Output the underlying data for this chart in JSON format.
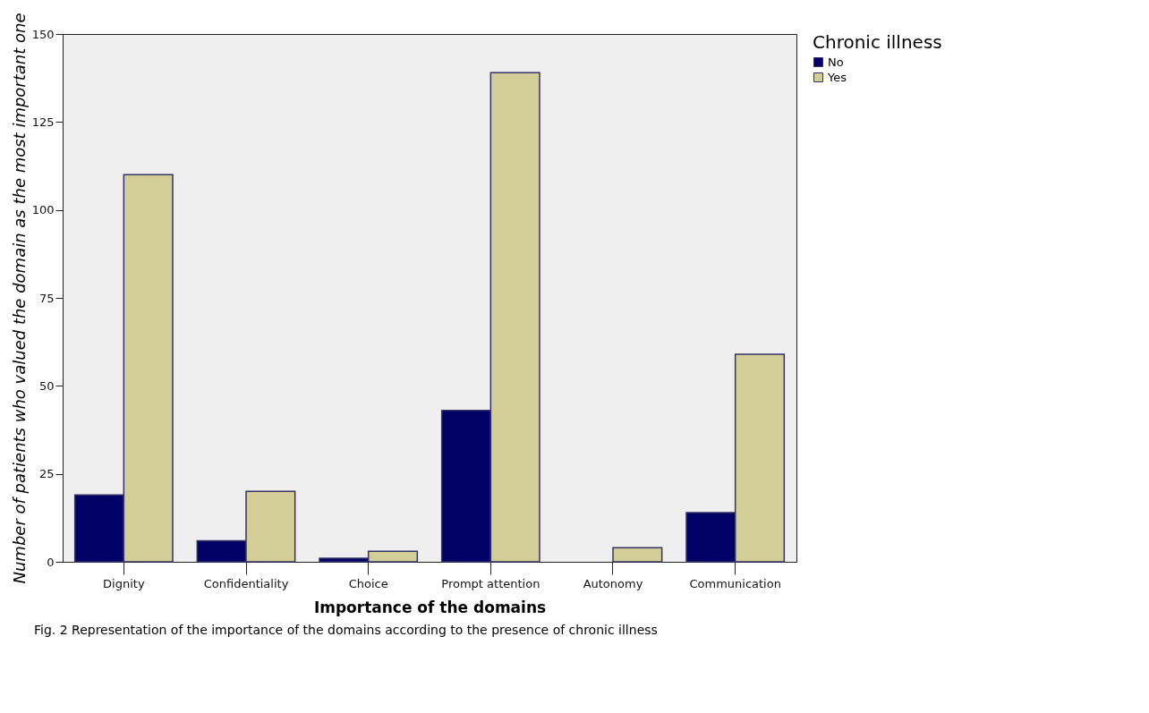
{
  "chart_data": {
    "type": "bar",
    "xlabel": "Importance of the domains",
    "ylabel": "Number of patients who valued the domain as the most important one",
    "legend_title": "Chronic illness",
    "categories": [
      "Dignity",
      "Confidentiality",
      "Choice",
      "Prompt attention",
      "Autonomy",
      "Communication"
    ],
    "series": [
      {
        "name": "No",
        "color": "#000066",
        "values": [
          19,
          6,
          1,
          43,
          0,
          14
        ]
      },
      {
        "name": "Yes",
        "color": "#d3ce97",
        "values": [
          110,
          20,
          3,
          139,
          4,
          59
        ]
      }
    ],
    "ylim": [
      0,
      150
    ],
    "yticks": [
      0,
      25,
      50,
      75,
      100,
      125,
      150
    ],
    "grid": false,
    "legend": "top right",
    "annotations": [
      "Fig. 2 Representation of the importance of the domains according to the presence of chronic illness"
    ]
  }
}
